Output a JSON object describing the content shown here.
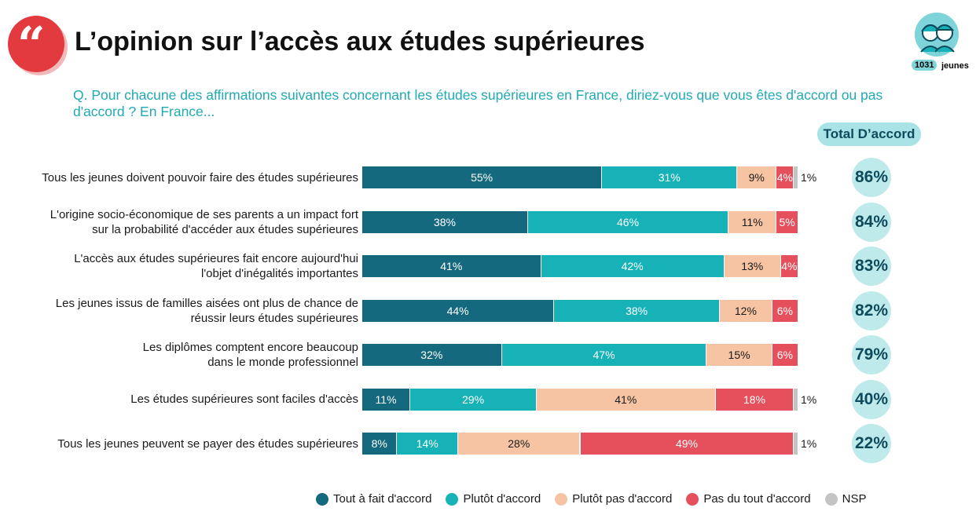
{
  "header": {
    "title": "L’opinion sur l’accès aux études supérieures",
    "question": "Q. Pour chacune des affirmations suivantes concernant les études supérieures en France, diriez-vous que vous êtes d'accord ou pas d'accord ? En France...",
    "quote_icon": "quote-icon",
    "sample_icon": "young-people-icon",
    "sample_size": "1031",
    "sample_label": "jeunes"
  },
  "total_header": "Total D’accord",
  "colors": {
    "tout_a_fait": "#14697e",
    "plutot": "#16b2b8",
    "plutot_pas": "#f6c4a3",
    "pas_du_tout": "#e6505c",
    "nsp": "#c4c4c4",
    "accent_red": "#e23a3f",
    "accent_teal": "#22aab3"
  },
  "chart_data": {
    "type": "bar",
    "orientation": "horizontal",
    "stacked": true,
    "unit": "%",
    "categories": [
      [
        "Tous les jeunes doivent pouvoir faire des études supérieures"
      ],
      [
        "L'origine socio-économique de ses parents a un impact fort",
        "sur la probabilité d'accéder aux études supérieures"
      ],
      [
        "L'accès aux études supérieures fait encore aujourd'hui",
        "l'objet d'inégalités importantes"
      ],
      [
        "Les jeunes issus de familles aisées ont plus de chance de",
        "réussir leurs études supérieures"
      ],
      [
        "Les diplômes comptent encore beaucoup",
        "dans le monde professionnel"
      ],
      [
        "Les études supérieures sont faciles d'accès"
      ],
      [
        "Tous les jeunes peuvent se payer des études supérieures"
      ]
    ],
    "series": [
      {
        "name": "Tout à fait d'accord",
        "values": [
          55,
          38,
          41,
          44,
          32,
          11,
          8
        ]
      },
      {
        "name": "Plutôt d'accord",
        "values": [
          31,
          46,
          42,
          38,
          47,
          29,
          14
        ]
      },
      {
        "name": "Plutôt pas d'accord",
        "values": [
          9,
          11,
          13,
          12,
          15,
          41,
          28
        ]
      },
      {
        "name": "Pas du tout d'accord",
        "values": [
          4,
          5,
          4,
          6,
          6,
          18,
          49
        ]
      },
      {
        "name": "NSP",
        "values": [
          1,
          0,
          0,
          0,
          0,
          1,
          1
        ]
      }
    ],
    "total_accord": [
      "86%",
      "84%",
      "83%",
      "82%",
      "79%",
      "40%",
      "22%"
    ],
    "legend_position": "bottom",
    "grid": false
  }
}
